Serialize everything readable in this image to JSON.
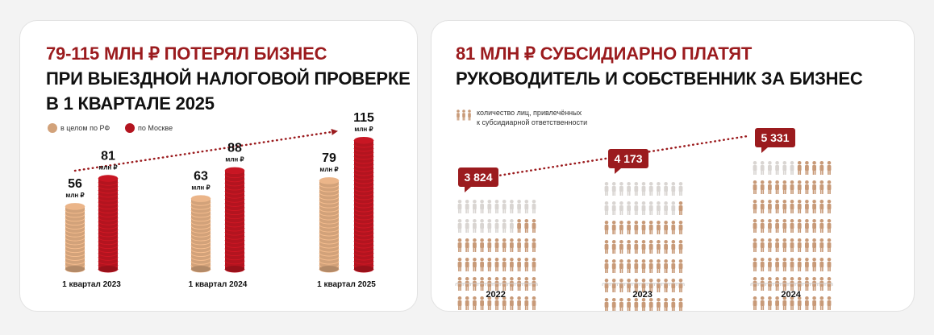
{
  "colors": {
    "red": "#9b1b1e",
    "coin_tan": "#d2a27a",
    "coin_red": "#b3141f",
    "person": "#c89a78",
    "person_light": "#d9d5d2"
  },
  "left_card": {
    "headline_red": "79-115 МЛН ₽ ПОТЕРЯЛ БИЗНЕС",
    "headline_dark_1": "ПРИ ВЫЕЗДНОЙ НАЛОГОВОЙ ПРОВЕРКЕ",
    "headline_dark_2": "В 1 КВАРТАЛЕ 2025",
    "legend": [
      "в целом по РФ",
      "по Москве"
    ]
  },
  "right_card": {
    "headline_red": "81 МЛН ₽ СУБСИДИАРНО ПЛАТЯТ",
    "headline_dark": "РУКОВОДИТЕЛЬ И СОБСТВЕННИК ЗА БИЗНЕС",
    "legend_line_1": "количество лиц, привлечённых",
    "legend_line_2": "к субсидиарной ответственности",
    "legend_icon": "people-group-icon"
  },
  "chart_data": [
    {
      "type": "bar",
      "title": "79-115 МЛН ₽ ПОТЕРЯЛ БИЗНЕС ПРИ ВЫЕЗДНОЙ НАЛОГОВОЙ ПРОВЕРКЕ В 1 КВАРТАЛЕ 2025",
      "categories": [
        "1 квартал 2023",
        "1 квартал 2024",
        "1 квартал 2025"
      ],
      "unit": "млн ₽",
      "series": [
        {
          "name": "в целом по РФ",
          "values": [
            56,
            63,
            79
          ],
          "color": "#d2a27a"
        },
        {
          "name": "по Москве",
          "values": [
            81,
            88,
            115
          ],
          "color": "#b3141f"
        }
      ],
      "ylim": [
        0,
        115
      ],
      "legend": "top-left",
      "grid": false,
      "trend_arrow": true
    },
    {
      "type": "bar",
      "title": "81 МЛН ₽ СУБСИДИАРНО ПЛАТЯТ РУКОВОДИТЕЛЬ И СОБСТВЕННИК ЗА БИЗНЕС",
      "categories": [
        "2022",
        "2023",
        "2024"
      ],
      "values": [
        3824,
        4173,
        5331
      ],
      "labels": [
        "3 824",
        "4 173",
        "5 331"
      ],
      "legend": "top-left",
      "grid": false
    }
  ]
}
